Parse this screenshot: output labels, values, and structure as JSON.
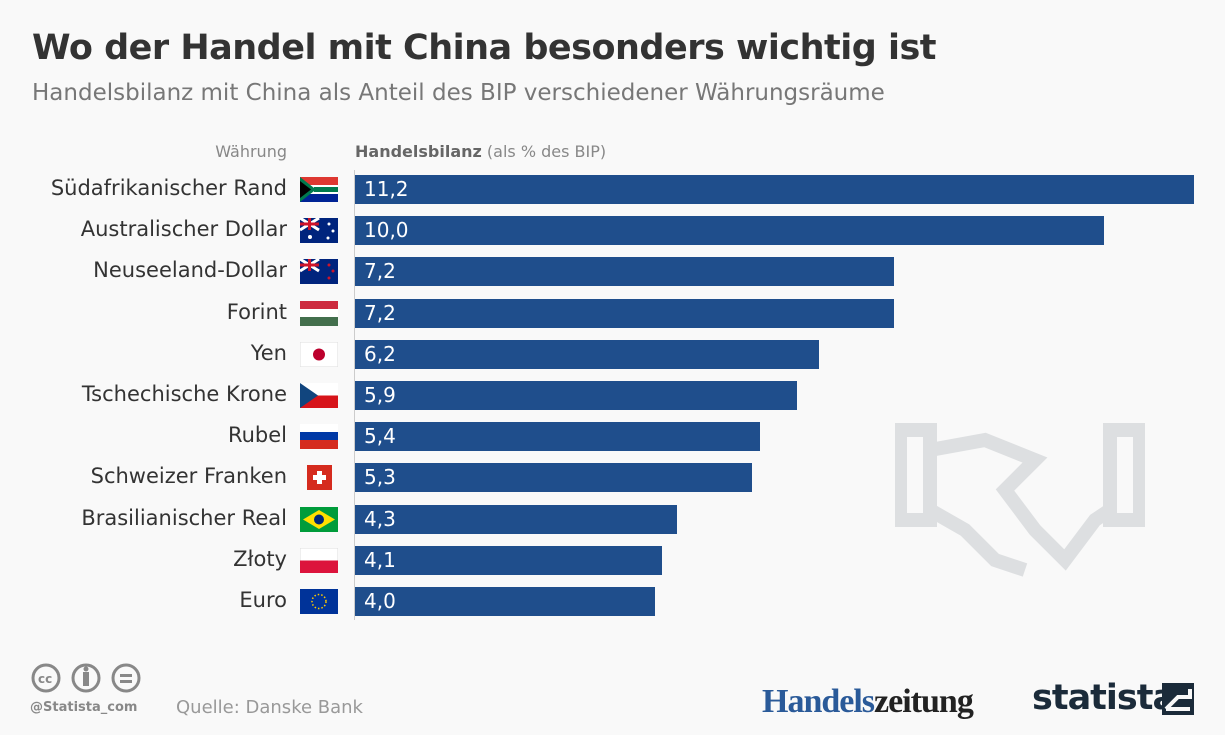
{
  "title": "Wo der Handel mit China besonders wichtig ist",
  "subtitle": "Handelsbilanz mit China als Anteil des BIP verschiedener Währungsräume",
  "colors": {
    "bar": "#1f4e8c",
    "text": "#333333"
  },
  "chart_data": {
    "type": "bar",
    "orientation": "horizontal",
    "category_header": "Währung",
    "value_header_bold": "Handelsbilanz",
    "value_header_rest": " (als % des BIP)",
    "categories": [
      "Südafrikanischer Rand",
      "Australischer Dollar",
      "Neuseeland-Dollar",
      "Forint",
      "Yen",
      "Tschechische Krone",
      "Rubel",
      "Schweizer Franken",
      "Brasilianischer Real",
      "Złoty",
      "Euro"
    ],
    "values": [
      11.2,
      10.0,
      7.2,
      7.2,
      6.2,
      5.9,
      5.4,
      5.3,
      4.3,
      4.1,
      4.0
    ],
    "value_labels": [
      "11,2",
      "10,0",
      "7,2",
      "7,2",
      "6,2",
      "5,9",
      "5,4",
      "5,3",
      "4,3",
      "4,1",
      "4,0"
    ],
    "flags": [
      "za",
      "au",
      "nz",
      "hu",
      "jp",
      "cz",
      "ru",
      "ch",
      "br",
      "pl",
      "eu"
    ],
    "xlim": [
      0,
      11.2
    ],
    "grid": false
  },
  "footer": {
    "handle": "@Statista_com",
    "source": "Quelle: Danske Bank",
    "logo1a": "Handels",
    "logo1b": "zeitung",
    "logo2": "statista"
  }
}
